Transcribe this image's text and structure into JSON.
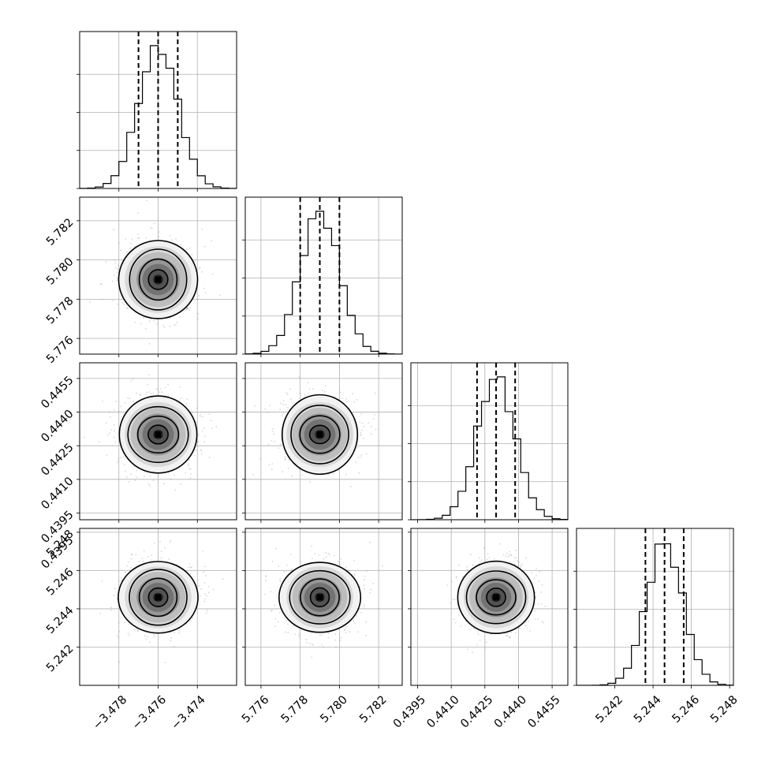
{
  "chart_data": {
    "type": "corner",
    "parameters": [
      {
        "ticks": [
          "−3.478",
          "−3.476",
          "−3.474"
        ],
        "tick_values": [
          -3.478,
          -3.476,
          -3.474
        ],
        "range": [
          -3.48,
          -3.472
        ],
        "mean": -3.476,
        "sigma": 0.001,
        "quantiles": [
          -3.477,
          -3.476,
          -3.475
        ]
      },
      {
        "ticks": [
          "5.776",
          "5.778",
          "5.780",
          "5.782"
        ],
        "tick_values": [
          5.776,
          5.778,
          5.78,
          5.782
        ],
        "range": [
          5.7752,
          5.7832
        ],
        "mean": 5.779,
        "sigma": 0.001,
        "quantiles": [
          5.778,
          5.779,
          5.78
        ]
      },
      {
        "ticks": [
          "0.4395",
          "0.4410",
          "0.4425",
          "0.4440",
          "0.4455"
        ],
        "tick_values": [
          0.4395,
          0.441,
          0.4425,
          0.444,
          0.4455
        ],
        "range": [
          0.4392,
          0.4462
        ],
        "mean": 0.443,
        "sigma": 0.00085,
        "quantiles": [
          0.44215,
          0.443,
          0.44385
        ]
      },
      {
        "ticks": [
          "5.242",
          "5.244",
          "5.246",
          "5.248"
        ],
        "tick_values": [
          5.242,
          5.244,
          5.246,
          5.248
        ],
        "range": [
          5.24,
          5.2482
        ],
        "mean": 5.2446,
        "sigma": 0.00095,
        "quantiles": [
          5.2436,
          5.2446,
          5.2456
        ]
      }
    ],
    "left_axis_corner_label": "0.4395",
    "grid": true,
    "histogram_bins": 20,
    "contour_sigma_levels": [
      0.5,
      1.0,
      1.5,
      2.0
    ],
    "line_color": "#000000",
    "scatter_color": "#8c8c8c",
    "density_colors": [
      "#f2f2f2",
      "#d9d9d9",
      "#bdbdbd",
      "#969696",
      "#737373",
      "#525252",
      "#252525"
    ]
  }
}
